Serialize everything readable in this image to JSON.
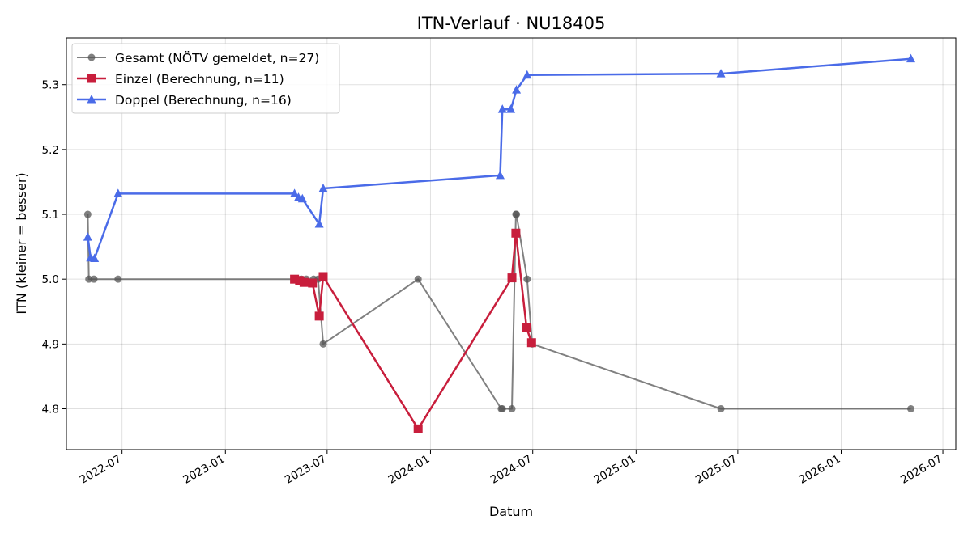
{
  "chart_data": {
    "type": "line",
    "title": "ITN-Verlauf · NU18405",
    "xlabel": "Datum",
    "ylabel": "ITN  (kleiner = besser)",
    "x_ticks": [
      "2022-07",
      "2023-01",
      "2023-07",
      "2024-01",
      "2024-07",
      "2025-01",
      "2025-07",
      "2026-01",
      "2026-07"
    ],
    "y_ticks": [
      "4.8",
      "4.9",
      "5.0",
      "5.1",
      "5.2",
      "5.3"
    ],
    "xlim": [
      "2022-03-24",
      "2026-07-24"
    ],
    "ylim": [
      4.737,
      5.372
    ],
    "grid": true,
    "legend_position": "top-left",
    "series": [
      {
        "name": "Gesamt (NÖTV gemeldet, n=27)",
        "color": "#555555",
        "marker": "circle",
        "points": [
          [
            "2022-05-01",
            5.1
          ],
          [
            "2022-05-03",
            5.0
          ],
          [
            "2022-05-12",
            5.0
          ],
          [
            "2022-06-24",
            5.0
          ],
          [
            "2023-05-04",
            5.0
          ],
          [
            "2023-05-16",
            5.0
          ],
          [
            "2023-05-25",
            5.0
          ],
          [
            "2023-06-07",
            5.0
          ],
          [
            "2023-06-15",
            5.0
          ],
          [
            "2023-06-24",
            4.9
          ],
          [
            "2023-12-10",
            5.0
          ],
          [
            "2024-05-06",
            4.8
          ],
          [
            "2024-05-08",
            4.8
          ],
          [
            "2024-05-25",
            4.8
          ],
          [
            "2024-06-01",
            5.1
          ],
          [
            "2024-06-02",
            5.1
          ],
          [
            "2024-06-21",
            5.0
          ],
          [
            "2024-06-30",
            4.9
          ],
          [
            "2025-06-01",
            4.8
          ],
          [
            "2026-05-05",
            4.8
          ]
        ]
      },
      {
        "name": "Einzel (Berechnung, n=11)",
        "color": "#c81e3c",
        "marker": "square",
        "points": [
          [
            "2023-05-04",
            5.0
          ],
          [
            "2023-05-13",
            4.998
          ],
          [
            "2023-05-21",
            4.995
          ],
          [
            "2023-06-05",
            4.994
          ],
          [
            "2023-06-17",
            4.943
          ],
          [
            "2023-06-24",
            5.004
          ],
          [
            "2023-12-10",
            4.769
          ],
          [
            "2024-05-25",
            5.002
          ],
          [
            "2024-06-01",
            5.071
          ],
          [
            "2024-06-20",
            4.925
          ],
          [
            "2024-06-29",
            4.902
          ]
        ]
      },
      {
        "name": "Doppel (Berechnung, n=16)",
        "color": "#4a6be8",
        "marker": "triangle",
        "points": [
          [
            "2022-05-01",
            5.065
          ],
          [
            "2022-05-06",
            5.033
          ],
          [
            "2022-05-13",
            5.032
          ],
          [
            "2022-06-24",
            5.132
          ],
          [
            "2023-05-04",
            5.132
          ],
          [
            "2023-05-11",
            5.126
          ],
          [
            "2023-05-18",
            5.124
          ],
          [
            "2023-06-17",
            5.085
          ],
          [
            "2023-06-24",
            5.14
          ],
          [
            "2024-05-04",
            5.16
          ],
          [
            "2024-05-08",
            5.262
          ],
          [
            "2024-05-23",
            5.262
          ],
          [
            "2024-06-02",
            5.292
          ],
          [
            "2024-06-21",
            5.315
          ],
          [
            "2025-06-01",
            5.317
          ],
          [
            "2026-05-05",
            5.34
          ]
        ]
      }
    ]
  }
}
